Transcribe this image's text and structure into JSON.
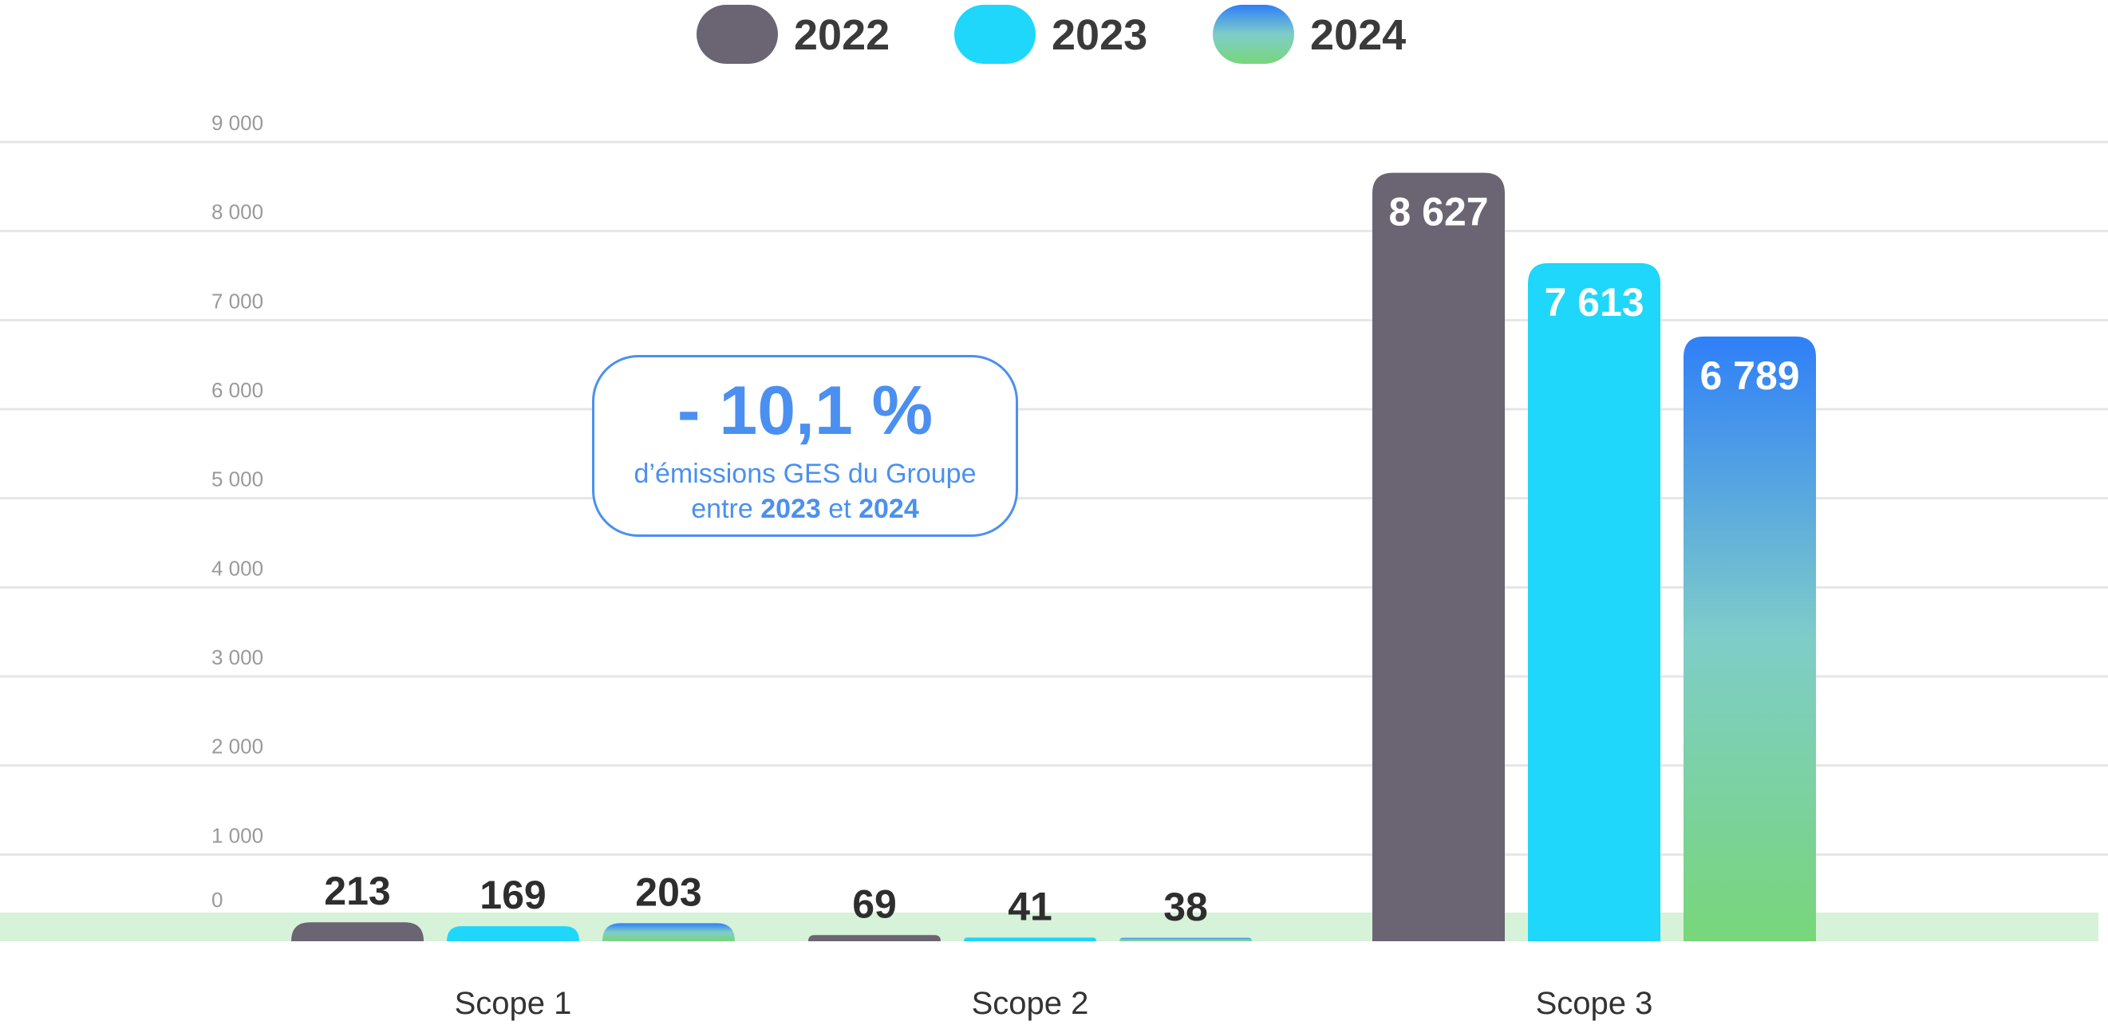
{
  "chart_data": {
    "type": "bar",
    "categories": [
      "Scope 1",
      "Scope 2",
      "Scope 3"
    ],
    "series": [
      {
        "name": "2022",
        "values": [
          213,
          69,
          8627
        ],
        "labels": [
          "213",
          "69",
          "8 627"
        ],
        "color": "#6b6472"
      },
      {
        "name": "2023",
        "values": [
          169,
          41,
          7613
        ],
        "labels": [
          "169",
          "41",
          "7 613"
        ],
        "color": "#1fd6fb"
      },
      {
        "name": "2024",
        "values": [
          203,
          38,
          6789
        ],
        "labels": [
          "203",
          "38",
          "6 789"
        ],
        "gradient": [
          "#2f7ff8",
          "#7fcdc8",
          "#78d67a"
        ]
      }
    ],
    "y_ticks": [
      0,
      1000,
      2000,
      3000,
      4000,
      5000,
      6000,
      7000,
      8000,
      9000
    ],
    "y_tick_labels": [
      "0",
      "1 000",
      "2 000",
      "3 000",
      "4 000",
      "5 000",
      "6 000",
      "7 000",
      "8 000",
      "9 000"
    ],
    "ylim": [
      0,
      9000
    ],
    "grid": true,
    "legend_position": "top-center",
    "baseline_band_color": "#d6f2d8"
  },
  "callout": {
    "value": "- 10,1 %",
    "line1": "d’émissions GES du Groupe",
    "line2_pre": "entre ",
    "line2_year1": "2023",
    "line2_mid": " et ",
    "line2_year2": "2024",
    "color": "#4b90f0"
  }
}
